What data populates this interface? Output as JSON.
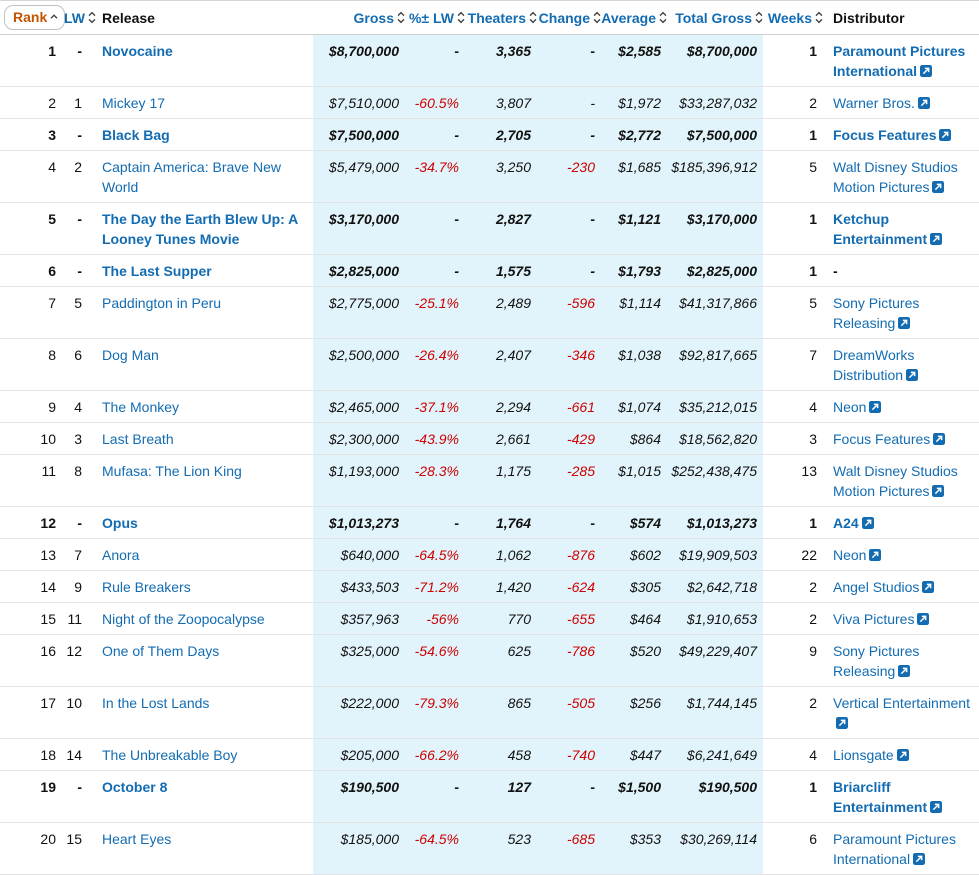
{
  "colors": {
    "link_blue": "#136cb2",
    "rank_orange": "#c45500",
    "negative_red": "#cc0000",
    "shaded_band_bg": "#e2f4fb",
    "row_border": "#e2e2e2"
  },
  "icons": {
    "sort_ascending": "sort-asc-icon",
    "sort_both": "sort-both-icon",
    "external_link": "external-link-icon"
  },
  "table": {
    "columns": [
      {
        "key": "rank",
        "label": "Rank",
        "sort": "asc",
        "style": "rank"
      },
      {
        "key": "lw",
        "label": "LW",
        "sort": "both",
        "style": "lw"
      },
      {
        "key": "release",
        "label": "Release",
        "sort": null,
        "style": "release"
      },
      {
        "key": "gross",
        "label": "Gross",
        "sort": "both",
        "style": "num"
      },
      {
        "key": "pct_lw",
        "label": "%± LW",
        "sort": "both",
        "style": "num"
      },
      {
        "key": "theaters",
        "label": "Theaters",
        "sort": "both",
        "style": "num"
      },
      {
        "key": "change",
        "label": "Change",
        "sort": "both",
        "style": "num"
      },
      {
        "key": "average",
        "label": "Average",
        "sort": "both",
        "style": "num"
      },
      {
        "key": "total_gross",
        "label": "Total Gross",
        "sort": "both",
        "style": "num"
      },
      {
        "key": "weeks",
        "label": "Weeks",
        "sort": "both",
        "style": "weeks"
      },
      {
        "key": "distributor",
        "label": "Distributor",
        "sort": null,
        "style": "dist"
      }
    ],
    "rows": [
      {
        "rank": "1",
        "lw": "-",
        "release": "Novocaine",
        "gross": "$8,700,000",
        "pct_lw": "-",
        "theaters": "3,365",
        "change": "-",
        "average": "$2,585",
        "total_gross": "$8,700,000",
        "weeks": "1",
        "distributor": "Paramount Pictures International",
        "distributor_link": true,
        "new_release": true
      },
      {
        "rank": "2",
        "lw": "1",
        "release": "Mickey 17",
        "gross": "$7,510,000",
        "pct_lw": "-60.5%",
        "theaters": "3,807",
        "change": "-",
        "average": "$1,972",
        "total_gross": "$33,287,032",
        "weeks": "2",
        "distributor": "Warner Bros.",
        "distributor_link": true,
        "new_release": false
      },
      {
        "rank": "3",
        "lw": "-",
        "release": "Black Bag",
        "gross": "$7,500,000",
        "pct_lw": "-",
        "theaters": "2,705",
        "change": "-",
        "average": "$2,772",
        "total_gross": "$7,500,000",
        "weeks": "1",
        "distributor": "Focus Features",
        "distributor_link": true,
        "new_release": true
      },
      {
        "rank": "4",
        "lw": "2",
        "release": "Captain America: Brave New World",
        "gross": "$5,479,000",
        "pct_lw": "-34.7%",
        "theaters": "3,250",
        "change": "-230",
        "average": "$1,685",
        "total_gross": "$185,396,912",
        "weeks": "5",
        "distributor": "Walt Disney Studios Motion Pictures",
        "distributor_link": true,
        "new_release": false
      },
      {
        "rank": "5",
        "lw": "-",
        "release": "The Day the Earth Blew Up: A Looney Tunes Movie",
        "gross": "$3,170,000",
        "pct_lw": "-",
        "theaters": "2,827",
        "change": "-",
        "average": "$1,121",
        "total_gross": "$3,170,000",
        "weeks": "1",
        "distributor": "Ketchup Entertainment",
        "distributor_link": true,
        "new_release": true
      },
      {
        "rank": "6",
        "lw": "-",
        "release": "The Last Supper",
        "gross": "$2,825,000",
        "pct_lw": "-",
        "theaters": "1,575",
        "change": "-",
        "average": "$1,793",
        "total_gross": "$2,825,000",
        "weeks": "1",
        "distributor": "-",
        "distributor_link": false,
        "new_release": true
      },
      {
        "rank": "7",
        "lw": "5",
        "release": "Paddington in Peru",
        "gross": "$2,775,000",
        "pct_lw": "-25.1%",
        "theaters": "2,489",
        "change": "-596",
        "average": "$1,114",
        "total_gross": "$41,317,866",
        "weeks": "5",
        "distributor": "Sony Pictures Releasing",
        "distributor_link": true,
        "new_release": false
      },
      {
        "rank": "8",
        "lw": "6",
        "release": "Dog Man",
        "gross": "$2,500,000",
        "pct_lw": "-26.4%",
        "theaters": "2,407",
        "change": "-346",
        "average": "$1,038",
        "total_gross": "$92,817,665",
        "weeks": "7",
        "distributor": "DreamWorks Distribution",
        "distributor_link": true,
        "new_release": false
      },
      {
        "rank": "9",
        "lw": "4",
        "release": "The Monkey",
        "gross": "$2,465,000",
        "pct_lw": "-37.1%",
        "theaters": "2,294",
        "change": "-661",
        "average": "$1,074",
        "total_gross": "$35,212,015",
        "weeks": "4",
        "distributor": "Neon",
        "distributor_link": true,
        "new_release": false
      },
      {
        "rank": "10",
        "lw": "3",
        "release": "Last Breath",
        "gross": "$2,300,000",
        "pct_lw": "-43.9%",
        "theaters": "2,661",
        "change": "-429",
        "average": "$864",
        "total_gross": "$18,562,820",
        "weeks": "3",
        "distributor": "Focus Features",
        "distributor_link": true,
        "new_release": false
      },
      {
        "rank": "11",
        "lw": "8",
        "release": "Mufasa: The Lion King",
        "gross": "$1,193,000",
        "pct_lw": "-28.3%",
        "theaters": "1,175",
        "change": "-285",
        "average": "$1,015",
        "total_gross": "$252,438,475",
        "weeks": "13",
        "distributor": "Walt Disney Studios Motion Pictures",
        "distributor_link": true,
        "new_release": false
      },
      {
        "rank": "12",
        "lw": "-",
        "release": "Opus",
        "gross": "$1,013,273",
        "pct_lw": "-",
        "theaters": "1,764",
        "change": "-",
        "average": "$574",
        "total_gross": "$1,013,273",
        "weeks": "1",
        "distributor": "A24",
        "distributor_link": true,
        "new_release": true
      },
      {
        "rank": "13",
        "lw": "7",
        "release": "Anora",
        "gross": "$640,000",
        "pct_lw": "-64.5%",
        "theaters": "1,062",
        "change": "-876",
        "average": "$602",
        "total_gross": "$19,909,503",
        "weeks": "22",
        "distributor": "Neon",
        "distributor_link": true,
        "new_release": false
      },
      {
        "rank": "14",
        "lw": "9",
        "release": "Rule Breakers",
        "gross": "$433,503",
        "pct_lw": "-71.2%",
        "theaters": "1,420",
        "change": "-624",
        "average": "$305",
        "total_gross": "$2,642,718",
        "weeks": "2",
        "distributor": "Angel Studios",
        "distributor_link": true,
        "new_release": false
      },
      {
        "rank": "15",
        "lw": "11",
        "release": "Night of the Zoopocalypse",
        "gross": "$357,963",
        "pct_lw": "-56%",
        "theaters": "770",
        "change": "-655",
        "average": "$464",
        "total_gross": "$1,910,653",
        "weeks": "2",
        "distributor": "Viva Pictures",
        "distributor_link": true,
        "new_release": false
      },
      {
        "rank": "16",
        "lw": "12",
        "release": "One of Them Days",
        "gross": "$325,000",
        "pct_lw": "-54.6%",
        "theaters": "625",
        "change": "-786",
        "average": "$520",
        "total_gross": "$49,229,407",
        "weeks": "9",
        "distributor": "Sony Pictures Releasing",
        "distributor_link": true,
        "new_release": false
      },
      {
        "rank": "17",
        "lw": "10",
        "release": "In the Lost Lands",
        "gross": "$222,000",
        "pct_lw": "-79.3%",
        "theaters": "865",
        "change": "-505",
        "average": "$256",
        "total_gross": "$1,744,145",
        "weeks": "2",
        "distributor": "Vertical Entertainment",
        "distributor_link": true,
        "new_release": false
      },
      {
        "rank": "18",
        "lw": "14",
        "release": "The Unbreakable Boy",
        "gross": "$205,000",
        "pct_lw": "-66.2%",
        "theaters": "458",
        "change": "-740",
        "average": "$447",
        "total_gross": "$6,241,649",
        "weeks": "4",
        "distributor": "Lionsgate",
        "distributor_link": true,
        "new_release": false
      },
      {
        "rank": "19",
        "lw": "-",
        "release": "October 8",
        "gross": "$190,500",
        "pct_lw": "-",
        "theaters": "127",
        "change": "-",
        "average": "$1,500",
        "total_gross": "$190,500",
        "weeks": "1",
        "distributor": "Briarcliff Entertainment",
        "distributor_link": true,
        "new_release": true
      },
      {
        "rank": "20",
        "lw": "15",
        "release": "Heart Eyes",
        "gross": "$185,000",
        "pct_lw": "-64.5%",
        "theaters": "523",
        "change": "-685",
        "average": "$353",
        "total_gross": "$30,269,114",
        "weeks": "6",
        "distributor": "Paramount Pictures International",
        "distributor_link": true,
        "new_release": false
      }
    ]
  }
}
